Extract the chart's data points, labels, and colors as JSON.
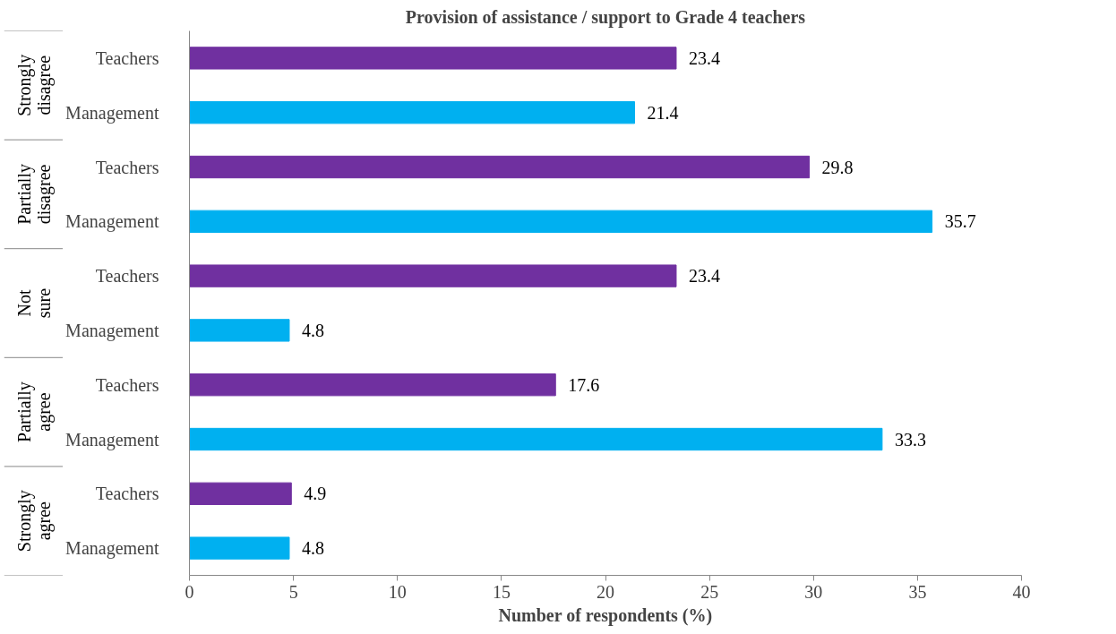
{
  "chart_data": {
    "type": "bar",
    "orientation": "horizontal",
    "title": "Provision of assistance / support to Grade 4 teachers",
    "xlabel": "Number of respondents (%)",
    "categories": [
      "Teachers",
      "Management",
      "Teachers",
      "Management",
      "Teachers",
      "Management",
      "Teachers",
      "Management",
      "Teachers",
      "Management"
    ],
    "values": [
      23.4,
      21.4,
      29.8,
      35.7,
      23.4,
      4.8,
      17.6,
      33.3,
      4.9,
      4.8
    ],
    "colors": [
      "#7030a0",
      "#00b0f0",
      "#7030a0",
      "#00b0f0",
      "#7030a0",
      "#00b0f0",
      "#7030a0",
      "#00b0f0",
      "#7030a0",
      "#00b0f0"
    ],
    "annotations": [
      "Strongly disagree",
      "Partially disagree",
      "Not sure",
      "Partially agree",
      "Strongly agree"
    ],
    "data_labels": true,
    "grid": false,
    "xlim": [
      0,
      40
    ],
    "xticks": [
      0,
      5,
      10,
      15,
      20,
      25,
      30,
      35,
      40
    ]
  }
}
